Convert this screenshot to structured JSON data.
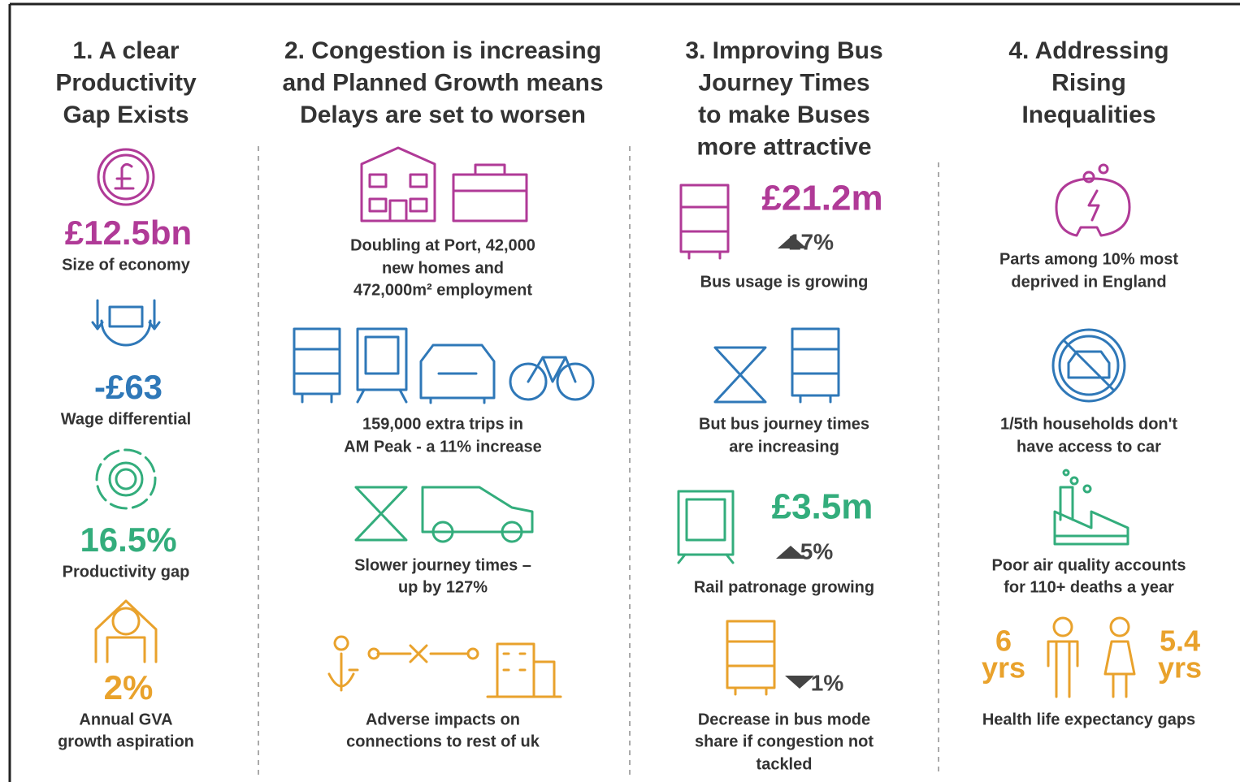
{
  "columns": [
    {
      "title": [
        "1. A clear",
        "Productivity",
        "Gap Exists"
      ],
      "items": [
        {
          "value": "£12.5bn",
          "caption": [
            "Size of economy"
          ]
        },
        {
          "value": "-£63",
          "caption": [
            "Wage differential"
          ]
        },
        {
          "value": "16.5%",
          "caption": [
            "Productivity gap"
          ]
        },
        {
          "value": "2%",
          "caption": [
            "Annual GVA",
            "growth aspiration"
          ]
        }
      ]
    },
    {
      "title": [
        "2. Congestion is increasing",
        "and Planned Growth means",
        "Delays are set to worsen"
      ],
      "items": [
        {
          "caption": [
            "Doubling at Port, 42,000",
            "new homes and",
            "472,000m² employment"
          ]
        },
        {
          "caption": [
            "159,000 extra trips in",
            "AM Peak - a 11% increase"
          ]
        },
        {
          "caption": [
            "Slower journey times –",
            "up by 127%"
          ]
        },
        {
          "caption": [
            "Adverse impacts on",
            "connections to rest of uk"
          ]
        }
      ]
    },
    {
      "title": [
        "3. Improving Bus",
        "Journey Times",
        "to make Buses",
        "more attractive"
      ],
      "items": [
        {
          "value": "£21.2m",
          "change": "17%",
          "caption": [
            "Bus usage is growing"
          ]
        },
        {
          "caption": [
            "But bus journey times",
            "are increasing"
          ]
        },
        {
          "value": "£3.5m",
          "change": "5%",
          "caption": [
            "Rail patronage growing"
          ]
        },
        {
          "change": "1%",
          "caption": [
            "Decrease in bus mode",
            "share if congestion not",
            "tackled"
          ]
        }
      ]
    },
    {
      "title": [
        "4. Addressing",
        "Rising",
        "Inequalities"
      ],
      "items": [
        {
          "caption": [
            "Parts among 10% most",
            "deprived in England"
          ]
        },
        {
          "caption": [
            "1/5th households don't",
            "have access to car"
          ]
        },
        {
          "caption": [
            "Poor air quality accounts",
            "for 110+ deaths a year"
          ]
        },
        {
          "gaps": [
            {
              "value": "6",
              "unit": "yrs"
            },
            {
              "value": "5.4",
              "unit": "yrs"
            }
          ],
          "caption": [
            "Health life expectancy gaps"
          ]
        }
      ]
    }
  ]
}
